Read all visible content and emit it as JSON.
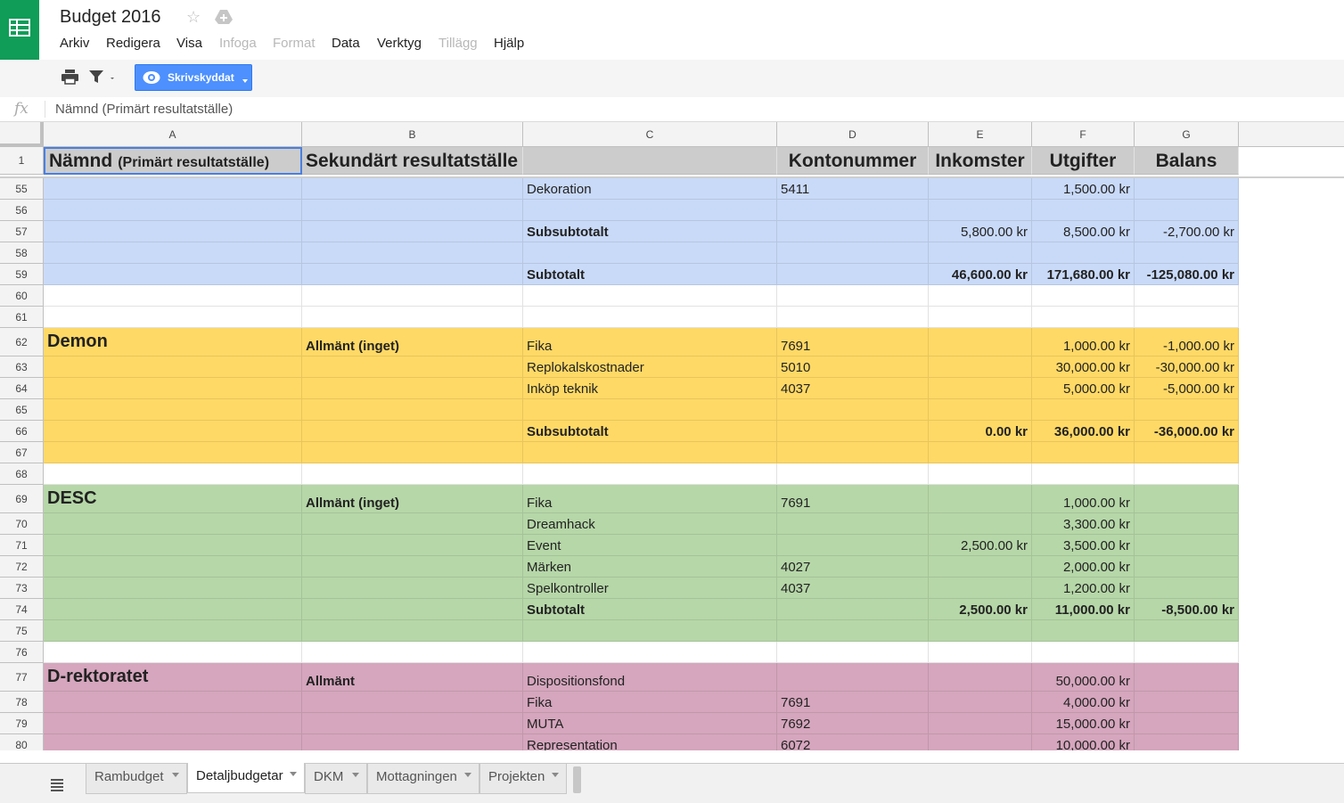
{
  "app": {
    "title": "Budget 2016",
    "icons": [
      "star-icon",
      "drive-folder-icon"
    ]
  },
  "menu": [
    "Arkiv",
    "Redigera",
    "Visa",
    "Infoga",
    "Format",
    "Data",
    "Verktyg",
    "Tillägg",
    "Hjälp"
  ],
  "menu_disabled": [
    "Infoga",
    "Format",
    "Tillägg"
  ],
  "toolbar": {
    "view_only_label": "Skrivskyddat",
    "icons": [
      "print-icon",
      "filter-icon",
      "eye-icon"
    ]
  },
  "formula_bar": {
    "fx_label": "fx",
    "value": "Nämnd (Primärt resultatställe)"
  },
  "grid": {
    "columns": [
      "A",
      "B",
      "C",
      "D",
      "E",
      "F",
      "G"
    ],
    "header_row": {
      "row": "1",
      "a_main": "Nämnd",
      "a_sub": "(Primärt resultatställe)",
      "b": "Sekundärt resultatställe",
      "c": "",
      "d": "Kontonummer",
      "e": "Inkomster",
      "f": "Utgifter",
      "g": "Balans"
    },
    "rows": [
      {
        "row": "55",
        "band": "blue",
        "cells": [
          "",
          "",
          "Dekoration",
          "5411",
          "",
          "1,500.00 kr",
          ""
        ]
      },
      {
        "row": "56",
        "band": "blue",
        "cells": [
          "",
          "",
          "",
          "",
          "",
          "",
          ""
        ]
      },
      {
        "row": "57",
        "band": "blue",
        "bold": true,
        "cells": [
          "",
          "",
          "Subsubtotalt",
          "",
          "5,800.00 kr",
          "8,500.00 kr",
          "-2,700.00 kr"
        ],
        "normal_weight": [
          4,
          5,
          6
        ]
      },
      {
        "row": "58",
        "band": "blue",
        "cells": [
          "",
          "",
          "",
          "",
          "",
          "",
          ""
        ]
      },
      {
        "row": "59",
        "band": "blue",
        "bold": true,
        "cells": [
          "",
          "",
          "Subtotalt",
          "",
          "46,600.00 kr",
          "171,680.00 kr",
          "-125,080.00 kr"
        ]
      },
      {
        "row": "60",
        "band": "white",
        "cells": [
          "",
          "",
          "",
          "",
          "",
          "",
          ""
        ]
      },
      {
        "row": "61",
        "band": "white",
        "cells": [
          "",
          "",
          "",
          "",
          "",
          "",
          ""
        ]
      },
      {
        "row": "62",
        "band": "yellow",
        "big": "Demon",
        "cells": [
          "",
          "Allmänt (inget)",
          "Fika",
          "7691",
          "",
          "1,000.00 kr",
          "-1,000.00 kr"
        ]
      },
      {
        "row": "63",
        "band": "yellow",
        "cells": [
          "",
          "",
          "Replokalskostnader",
          "5010",
          "",
          "30,000.00 kr",
          "-30,000.00 kr"
        ]
      },
      {
        "row": "64",
        "band": "yellow",
        "cells": [
          "",
          "",
          "Inköp teknik",
          "4037",
          "",
          "5,000.00 kr",
          "-5,000.00 kr"
        ]
      },
      {
        "row": "65",
        "band": "yellow",
        "cells": [
          "",
          "",
          "",
          "",
          "",
          "",
          ""
        ]
      },
      {
        "row": "66",
        "band": "yellow",
        "bold": true,
        "cells": [
          "",
          "",
          "Subsubtotalt",
          "",
          "0.00 kr",
          "36,000.00 kr",
          "-36,000.00 kr"
        ]
      },
      {
        "row": "67",
        "band": "yellow",
        "cells": [
          "",
          "",
          "",
          "",
          "",
          "",
          ""
        ]
      },
      {
        "row": "68",
        "band": "white",
        "cells": [
          "",
          "",
          "",
          "",
          "",
          "",
          ""
        ]
      },
      {
        "row": "69",
        "band": "green",
        "big": "DESC",
        "cells": [
          "",
          "Allmänt (inget)",
          "Fika",
          "7691",
          "",
          "1,000.00 kr",
          ""
        ]
      },
      {
        "row": "70",
        "band": "green",
        "cells": [
          "",
          "",
          "Dreamhack",
          "",
          "",
          "3,300.00 kr",
          ""
        ]
      },
      {
        "row": "71",
        "band": "green",
        "cells": [
          "",
          "",
          "Event",
          "",
          "2,500.00 kr",
          "3,500.00 kr",
          ""
        ]
      },
      {
        "row": "72",
        "band": "green",
        "cells": [
          "",
          "",
          "Märken",
          "4027",
          "",
          "2,000.00 kr",
          ""
        ]
      },
      {
        "row": "73",
        "band": "green",
        "cells": [
          "",
          "",
          "Spelkontroller",
          "4037",
          "",
          "1,200.00 kr",
          ""
        ]
      },
      {
        "row": "74",
        "band": "green",
        "bold": true,
        "cells": [
          "",
          "",
          "Subtotalt",
          "",
          "2,500.00 kr",
          "11,000.00 kr",
          "-8,500.00 kr"
        ]
      },
      {
        "row": "75",
        "band": "green",
        "cells": [
          "",
          "",
          "",
          "",
          "",
          "",
          ""
        ]
      },
      {
        "row": "76",
        "band": "white",
        "cells": [
          "",
          "",
          "",
          "",
          "",
          "",
          ""
        ]
      },
      {
        "row": "77",
        "band": "pink",
        "big": "D-rektoratet",
        "cells": [
          "",
          "Allmänt",
          "Dispositionsfond",
          "",
          "",
          "50,000.00 kr",
          ""
        ]
      },
      {
        "row": "78",
        "band": "pink",
        "cells": [
          "",
          "",
          "Fika",
          "7691",
          "",
          "4,000.00 kr",
          ""
        ]
      },
      {
        "row": "79",
        "band": "pink",
        "cells": [
          "",
          "",
          "MUTA",
          "7692",
          "",
          "15,000.00 kr",
          ""
        ]
      },
      {
        "row": "80",
        "band": "pink",
        "cells": [
          "",
          "",
          "Representation",
          "6072",
          "",
          "10,000.00 kr",
          ""
        ]
      }
    ]
  },
  "band_colors": {
    "blue": "#c9daf8",
    "yellow": "#ffd966",
    "green": "#b6d7a8",
    "pink": "#d5a6bd",
    "white": "#ffffff",
    "header": "#cccccc"
  },
  "accent": "#0f9d58",
  "sheets": [
    "Rambudget",
    "Detaljbudgetar",
    "DKM",
    "Mottagningen",
    "Projekten"
  ],
  "active_sheet": "Detaljbudgetar"
}
